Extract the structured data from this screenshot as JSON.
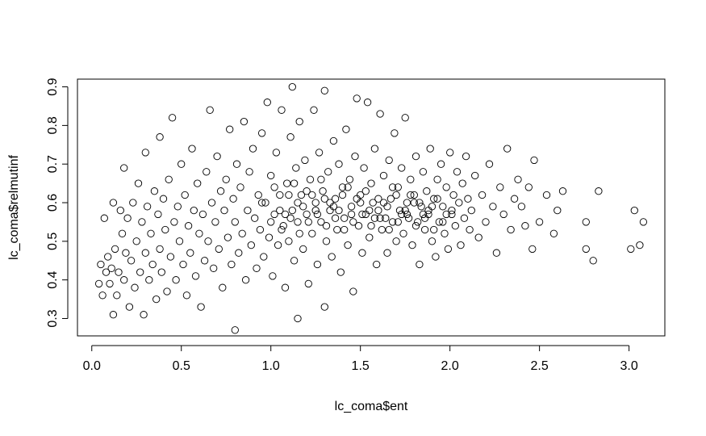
{
  "chart_data": {
    "type": "scatter",
    "title": "",
    "xlabel": "lc_coma$ent",
    "ylabel": "lc_coma$relmutinf",
    "xlim": [
      -0.08,
      3.2
    ],
    "ylim": [
      0.255,
      0.92
    ],
    "x_ticks": [
      0.0,
      0.5,
      1.0,
      1.5,
      2.0,
      2.5,
      3.0
    ],
    "x_tick_labels": [
      "0.0",
      "0.5",
      "1.0",
      "1.5",
      "2.0",
      "2.5",
      "3.0"
    ],
    "y_ticks": [
      0.3,
      0.4,
      0.5,
      0.6,
      0.7,
      0.8,
      0.9
    ],
    "y_tick_labels": [
      "0.3",
      "0.4",
      "0.5",
      "0.6",
      "0.7",
      "0.8",
      "0.9"
    ],
    "grid": false,
    "marker": "open-circle",
    "marker_color": "#000000",
    "points": [
      [
        0.04,
        0.39
      ],
      [
        0.05,
        0.44
      ],
      [
        0.06,
        0.36
      ],
      [
        0.07,
        0.56
      ],
      [
        0.08,
        0.42
      ],
      [
        0.09,
        0.46
      ],
      [
        0.1,
        0.39
      ],
      [
        0.11,
        0.43
      ],
      [
        0.12,
        0.31
      ],
      [
        0.12,
        0.6
      ],
      [
        0.13,
        0.48
      ],
      [
        0.14,
        0.36
      ],
      [
        0.15,
        0.42
      ],
      [
        0.16,
        0.58
      ],
      [
        0.17,
        0.52
      ],
      [
        0.18,
        0.4
      ],
      [
        0.18,
        0.69
      ],
      [
        0.19,
        0.47
      ],
      [
        0.2,
        0.56
      ],
      [
        0.21,
        0.33
      ],
      [
        0.22,
        0.45
      ],
      [
        0.23,
        0.6
      ],
      [
        0.24,
        0.38
      ],
      [
        0.25,
        0.5
      ],
      [
        0.26,
        0.65
      ],
      [
        0.27,
        0.42
      ],
      [
        0.28,
        0.55
      ],
      [
        0.29,
        0.31
      ],
      [
        0.3,
        0.47
      ],
      [
        0.3,
        0.73
      ],
      [
        0.31,
        0.59
      ],
      [
        0.32,
        0.4
      ],
      [
        0.33,
        0.52
      ],
      [
        0.34,
        0.44
      ],
      [
        0.35,
        0.63
      ],
      [
        0.36,
        0.35
      ],
      [
        0.37,
        0.57
      ],
      [
        0.38,
        0.48
      ],
      [
        0.38,
        0.77
      ],
      [
        0.39,
        0.42
      ],
      [
        0.4,
        0.61
      ],
      [
        0.41,
        0.53
      ],
      [
        0.42,
        0.37
      ],
      [
        0.43,
        0.66
      ],
      [
        0.44,
        0.46
      ],
      [
        0.45,
        0.82
      ],
      [
        0.46,
        0.55
      ],
      [
        0.47,
        0.4
      ],
      [
        0.48,
        0.59
      ],
      [
        0.49,
        0.5
      ],
      [
        0.5,
        0.7
      ],
      [
        0.51,
        0.44
      ],
      [
        0.52,
        0.62
      ],
      [
        0.53,
        0.36
      ],
      [
        0.54,
        0.54
      ],
      [
        0.55,
        0.47
      ],
      [
        0.56,
        0.74
      ],
      [
        0.57,
        0.58
      ],
      [
        0.58,
        0.41
      ],
      [
        0.59,
        0.65
      ],
      [
        0.6,
        0.52
      ],
      [
        0.61,
        0.33
      ],
      [
        0.62,
        0.57
      ],
      [
        0.63,
        0.45
      ],
      [
        0.64,
        0.68
      ],
      [
        0.65,
        0.5
      ],
      [
        0.66,
        0.84
      ],
      [
        0.67,
        0.6
      ],
      [
        0.68,
        0.43
      ],
      [
        0.69,
        0.55
      ],
      [
        0.7,
        0.72
      ],
      [
        0.71,
        0.48
      ],
      [
        0.72,
        0.63
      ],
      [
        0.73,
        0.38
      ],
      [
        0.74,
        0.58
      ],
      [
        0.75,
        0.66
      ],
      [
        0.76,
        0.51
      ],
      [
        0.77,
        0.79
      ],
      [
        0.78,
        0.44
      ],
      [
        0.79,
        0.61
      ],
      [
        0.8,
        0.27
      ],
      [
        0.8,
        0.55
      ],
      [
        0.81,
        0.7
      ],
      [
        0.82,
        0.47
      ],
      [
        0.83,
        0.64
      ],
      [
        0.84,
        0.52
      ],
      [
        0.85,
        0.81
      ],
      [
        0.86,
        0.4
      ],
      [
        0.87,
        0.58
      ],
      [
        0.88,
        0.68
      ],
      [
        0.89,
        0.49
      ],
      [
        0.9,
        0.74
      ],
      [
        0.91,
        0.56
      ],
      [
        0.92,
        0.43
      ],
      [
        0.93,
        0.62
      ],
      [
        0.94,
        0.53
      ],
      [
        0.95,
        0.78
      ],
      [
        0.96,
        0.46
      ],
      [
        0.97,
        0.6
      ],
      [
        0.98,
        0.86
      ],
      [
        0.99,
        0.51
      ],
      [
        1.0,
        0.67
      ],
      [
        1.01,
        0.41
      ],
      [
        1.02,
        0.57
      ],
      [
        1.03,
        0.73
      ],
      [
        1.04,
        0.49
      ],
      [
        1.05,
        0.62
      ],
      [
        1.06,
        0.84
      ],
      [
        1.07,
        0.54
      ],
      [
        1.08,
        0.38
      ],
      [
        1.09,
        0.65
      ],
      [
        1.1,
        0.5
      ],
      [
        1.11,
        0.77
      ],
      [
        1.12,
        0.9
      ],
      [
        1.12,
        0.58
      ],
      [
        1.13,
        0.45
      ],
      [
        1.14,
        0.69
      ],
      [
        1.15,
        0.3
      ],
      [
        1.15,
        0.55
      ],
      [
        1.16,
        0.81
      ],
      [
        1.17,
        0.62
      ],
      [
        1.18,
        0.48
      ],
      [
        1.19,
        0.71
      ],
      [
        1.2,
        0.57
      ],
      [
        1.21,
        0.39
      ],
      [
        1.22,
        0.66
      ],
      [
        1.23,
        0.52
      ],
      [
        1.24,
        0.84
      ],
      [
        1.25,
        0.6
      ],
      [
        1.26,
        0.44
      ],
      [
        1.27,
        0.73
      ],
      [
        1.28,
        0.55
      ],
      [
        1.29,
        0.63
      ],
      [
        1.3,
        0.33
      ],
      [
        1.3,
        0.89
      ],
      [
        1.31,
        0.5
      ],
      [
        1.32,
        0.68
      ],
      [
        1.33,
        0.58
      ],
      [
        1.34,
        0.46
      ],
      [
        1.35,
        0.76
      ],
      [
        1.36,
        0.61
      ],
      [
        1.37,
        0.53
      ],
      [
        1.38,
        0.7
      ],
      [
        1.39,
        0.42
      ],
      [
        1.4,
        0.64
      ],
      [
        1.41,
        0.56
      ],
      [
        1.42,
        0.79
      ],
      [
        1.43,
        0.49
      ],
      [
        1.44,
        0.66
      ],
      [
        1.45,
        0.59
      ],
      [
        1.46,
        0.37
      ],
      [
        1.47,
        0.72
      ],
      [
        1.48,
        0.87
      ],
      [
        1.49,
        0.54
      ],
      [
        1.5,
        0.62
      ],
      [
        1.51,
        0.47
      ],
      [
        1.52,
        0.69
      ],
      [
        1.53,
        0.57
      ],
      [
        1.54,
        0.86
      ],
      [
        1.55,
        0.51
      ],
      [
        1.56,
        0.65
      ],
      [
        1.57,
        0.6
      ],
      [
        1.58,
        0.74
      ],
      [
        1.59,
        0.44
      ],
      [
        1.6,
        0.58
      ],
      [
        1.61,
        0.83
      ],
      [
        1.62,
        0.53
      ],
      [
        1.63,
        0.67
      ],
      [
        1.64,
        0.56
      ],
      [
        1.65,
        0.47
      ],
      [
        1.66,
        0.71
      ],
      [
        1.67,
        0.61
      ],
      [
        1.68,
        0.55
      ],
      [
        1.69,
        0.78
      ],
      [
        1.7,
        0.5
      ],
      [
        1.71,
        0.64
      ],
      [
        1.72,
        0.58
      ],
      [
        1.73,
        0.69
      ],
      [
        1.74,
        0.52
      ],
      [
        1.75,
        0.82
      ],
      [
        1.76,
        0.6
      ],
      [
        1.77,
        0.56
      ],
      [
        1.78,
        0.66
      ],
      [
        1.79,
        0.49
      ],
      [
        1.8,
        0.62
      ],
      [
        1.81,
        0.72
      ],
      [
        1.82,
        0.55
      ],
      [
        1.83,
        0.44
      ],
      [
        1.84,
        0.59
      ],
      [
        1.85,
        0.68
      ],
      [
        1.86,
        0.53
      ],
      [
        1.87,
        0.63
      ],
      [
        1.88,
        0.57
      ],
      [
        1.89,
        0.74
      ],
      [
        1.9,
        0.5
      ],
      [
        1.91,
        0.61
      ],
      [
        1.92,
        0.46
      ],
      [
        1.93,
        0.66
      ],
      [
        1.94,
        0.55
      ],
      [
        1.95,
        0.7
      ],
      [
        1.96,
        0.59
      ],
      [
        1.97,
        0.52
      ],
      [
        1.98,
        0.64
      ],
      [
        1.99,
        0.48
      ],
      [
        2.0,
        0.73
      ],
      [
        2.01,
        0.57
      ],
      [
        2.02,
        0.62
      ],
      [
        2.03,
        0.54
      ],
      [
        2.04,
        0.68
      ],
      [
        2.05,
        0.6
      ],
      [
        2.06,
        0.49
      ],
      [
        2.07,
        0.65
      ],
      [
        2.08,
        0.56
      ],
      [
        2.09,
        0.72
      ],
      [
        2.1,
        0.61
      ],
      [
        2.11,
        0.53
      ],
      [
        2.12,
        0.58
      ],
      [
        2.14,
        0.67
      ],
      [
        2.16,
        0.51
      ],
      [
        2.18,
        0.62
      ],
      [
        2.2,
        0.55
      ],
      [
        2.22,
        0.7
      ],
      [
        2.24,
        0.59
      ],
      [
        2.26,
        0.47
      ],
      [
        2.28,
        0.64
      ],
      [
        2.3,
        0.57
      ],
      [
        2.32,
        0.74
      ],
      [
        2.34,
        0.53
      ],
      [
        2.36,
        0.61
      ],
      [
        2.38,
        0.66
      ],
      [
        2.4,
        0.59
      ],
      [
        2.42,
        0.54
      ],
      [
        2.44,
        0.64
      ],
      [
        2.46,
        0.48
      ],
      [
        2.47,
        0.71
      ],
      [
        2.5,
        0.55
      ],
      [
        2.54,
        0.62
      ],
      [
        2.58,
        0.52
      ],
      [
        2.6,
        0.58
      ],
      [
        2.63,
        0.63
      ],
      [
        2.76,
        0.55
      ],
      [
        2.76,
        0.48
      ],
      [
        2.8,
        0.45
      ],
      [
        2.83,
        0.63
      ],
      [
        3.01,
        0.48
      ],
      [
        3.03,
        0.58
      ],
      [
        3.06,
        0.49
      ],
      [
        3.08,
        0.55
      ],
      [
        0.95,
        0.6
      ],
      [
        1.0,
        0.55
      ],
      [
        1.05,
        0.58
      ],
      [
        1.1,
        0.62
      ],
      [
        1.15,
        0.6
      ],
      [
        1.2,
        0.63
      ],
      [
        1.25,
        0.58
      ],
      [
        1.3,
        0.61
      ],
      [
        1.35,
        0.59
      ],
      [
        1.4,
        0.62
      ],
      [
        1.45,
        0.57
      ],
      [
        1.5,
        0.6
      ],
      [
        1.55,
        0.58
      ],
      [
        1.6,
        0.61
      ],
      [
        1.65,
        0.59
      ],
      [
        1.7,
        0.62
      ],
      [
        1.75,
        0.58
      ],
      [
        1.8,
        0.6
      ],
      [
        1.85,
        0.57
      ],
      [
        1.9,
        0.59
      ],
      [
        1.02,
        0.64
      ],
      [
        1.08,
        0.57
      ],
      [
        1.13,
        0.65
      ],
      [
        1.18,
        0.59
      ],
      [
        1.23,
        0.62
      ],
      [
        1.28,
        0.66
      ],
      [
        1.33,
        0.6
      ],
      [
        1.38,
        0.58
      ],
      [
        1.43,
        0.64
      ],
      [
        1.48,
        0.61
      ],
      [
        1.53,
        0.63
      ],
      [
        1.58,
        0.56
      ],
      [
        1.63,
        0.6
      ],
      [
        1.68,
        0.64
      ],
      [
        1.73,
        0.57
      ],
      [
        1.78,
        0.62
      ],
      [
        1.83,
        0.6
      ],
      [
        1.88,
        0.58
      ],
      [
        1.93,
        0.61
      ],
      [
        1.98,
        0.57
      ],
      [
        1.06,
        0.53
      ],
      [
        1.11,
        0.56
      ],
      [
        1.16,
        0.52
      ],
      [
        1.21,
        0.55
      ],
      [
        1.26,
        0.57
      ],
      [
        1.31,
        0.54
      ],
      [
        1.36,
        0.56
      ],
      [
        1.41,
        0.53
      ],
      [
        1.46,
        0.55
      ],
      [
        1.51,
        0.57
      ],
      [
        1.56,
        0.54
      ],
      [
        1.61,
        0.56
      ],
      [
        1.66,
        0.53
      ],
      [
        1.71,
        0.55
      ],
      [
        1.76,
        0.57
      ],
      [
        1.81,
        0.54
      ],
      [
        1.86,
        0.56
      ],
      [
        1.91,
        0.53
      ],
      [
        1.96,
        0.55
      ],
      [
        2.01,
        0.58
      ]
    ]
  }
}
